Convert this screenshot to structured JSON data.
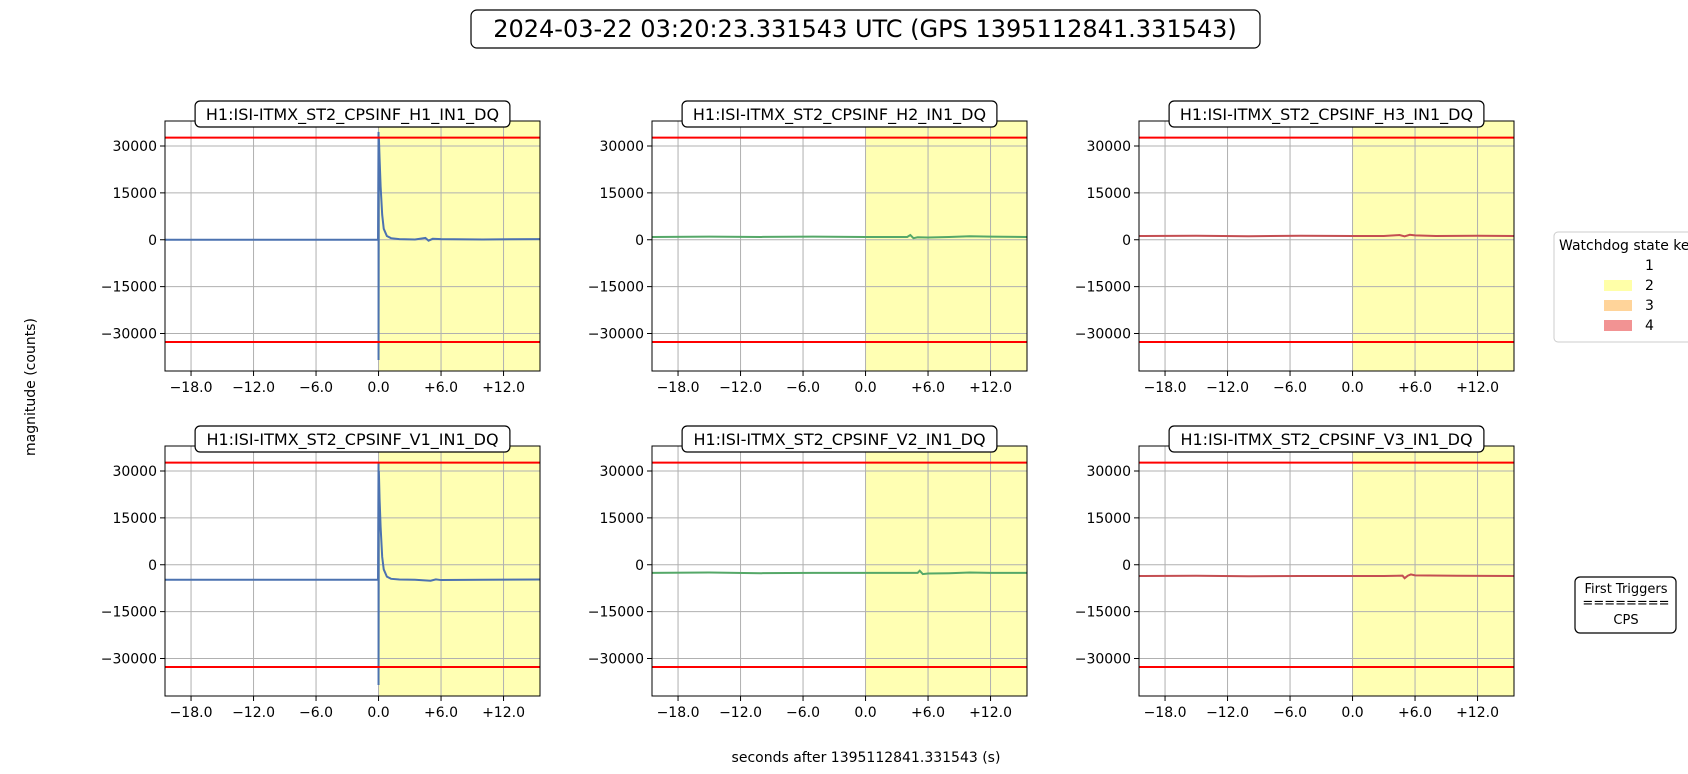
{
  "figure": {
    "title": "2024-03-22 03:20:23.331543 UTC (GPS 1395112841.331543)",
    "ylabel": "magnitude (counts)",
    "xlabel": "seconds after 1395112841.331543 (s)"
  },
  "legend": {
    "title": "Watchdog state key",
    "entries": [
      {
        "label": "1",
        "color": "#ffffff"
      },
      {
        "label": "2",
        "color": "#ffff99"
      },
      {
        "label": "3",
        "color": "#ffcc88"
      },
      {
        "label": "4",
        "color": "#f08080"
      }
    ]
  },
  "triggers_box": {
    "lines": [
      "First Triggers",
      "========",
      "CPS"
    ]
  },
  "colors": {
    "threshold": "#ff0000",
    "state2_fill": "#ffffb2",
    "grid": "#b0b0b0"
  },
  "chart_data": [
    {
      "type": "line",
      "title": "H1:ISI-ITMX_ST2_CPSINF_H1_IN1_DQ",
      "xlim": [
        -20.5,
        15.5
      ],
      "ylim": [
        -42000,
        38000
      ],
      "xticks": [
        -18,
        -12,
        -6,
        0,
        6,
        12
      ],
      "xtick_labels": [
        "−18.0",
        "−12.0",
        "−6.0",
        "0.0",
        "+6.0",
        "+12.0"
      ],
      "yticks": [
        30000,
        15000,
        0,
        -15000,
        -30000
      ],
      "ytick_labels": [
        "30000",
        "15000",
        "0",
        "−15000",
        "−30000"
      ],
      "thresholds": [
        32700,
        -32700
      ],
      "shaded_regions": [
        {
          "x0": 0.0,
          "x1": 15.5,
          "state": 2
        }
      ],
      "series": [
        {
          "color": "#4c72b0",
          "x": [
            -20.5,
            -10,
            -1,
            -0.05,
            0.0,
            0.0,
            0.03,
            0.1,
            0.2,
            0.35,
            0.5,
            0.8,
            1.2,
            2.0,
            3.5,
            4.5,
            4.8,
            5.2,
            6,
            10,
            15.5
          ],
          "y": [
            0,
            0,
            0,
            0,
            34500,
            -38500,
            33000,
            26000,
            17000,
            8000,
            3500,
            1200,
            500,
            200,
            100,
            600,
            -300,
            300,
            200,
            100,
            200
          ]
        }
      ]
    },
    {
      "type": "line",
      "title": "H1:ISI-ITMX_ST2_CPSINF_H2_IN1_DQ",
      "xlim": [
        -20.5,
        15.5
      ],
      "ylim": [
        -42000,
        38000
      ],
      "xticks": [
        -18,
        -12,
        -6,
        0,
        6,
        12
      ],
      "xtick_labels": [
        "−18.0",
        "−12.0",
        "−6.0",
        "0.0",
        "+6.0",
        "+12.0"
      ],
      "yticks": [
        30000,
        15000,
        0,
        -15000,
        -30000
      ],
      "ytick_labels": [
        "30000",
        "15000",
        "0",
        "−15000",
        "−30000"
      ],
      "thresholds": [
        32700,
        -32700
      ],
      "shaded_regions": [
        {
          "x0": 0.0,
          "x1": 15.5,
          "state": 2
        }
      ],
      "series": [
        {
          "color": "#55a868",
          "x": [
            -20.5,
            -15,
            -10,
            -5,
            0,
            3,
            4,
            4.3,
            4.6,
            5,
            6,
            8,
            10,
            12,
            15.5
          ],
          "y": [
            900,
            1000,
            900,
            1000,
            900,
            900,
            900,
            1500,
            500,
            800,
            700,
            900,
            1100,
            1000,
            900
          ]
        }
      ]
    },
    {
      "type": "line",
      "title": "H1:ISI-ITMX_ST2_CPSINF_H3_IN1_DQ",
      "xlim": [
        -20.5,
        15.5
      ],
      "ylim": [
        -42000,
        38000
      ],
      "xticks": [
        -18,
        -12,
        -6,
        0,
        6,
        12
      ],
      "xtick_labels": [
        "−18.0",
        "−12.0",
        "−6.0",
        "0.0",
        "+6.0",
        "+12.0"
      ],
      "yticks": [
        30000,
        15000,
        0,
        -15000,
        -30000
      ],
      "ytick_labels": [
        "30000",
        "15000",
        "0",
        "−15000",
        "−30000"
      ],
      "thresholds": [
        32700,
        -32700
      ],
      "shaded_regions": [
        {
          "x0": 0.0,
          "x1": 15.5,
          "state": 2
        }
      ],
      "series": [
        {
          "color": "#c44e52",
          "x": [
            -20.5,
            -15,
            -10,
            -5,
            0,
            3,
            4.5,
            5,
            5.5,
            6,
            8,
            12,
            15.5
          ],
          "y": [
            1200,
            1300,
            1100,
            1300,
            1200,
            1200,
            1500,
            1100,
            1600,
            1400,
            1200,
            1300,
            1200
          ]
        }
      ]
    },
    {
      "type": "line",
      "title": "H1:ISI-ITMX_ST2_CPSINF_V1_IN1_DQ",
      "xlim": [
        -20.5,
        15.5
      ],
      "ylim": [
        -42000,
        38000
      ],
      "xticks": [
        -18,
        -12,
        -6,
        0,
        6,
        12
      ],
      "xtick_labels": [
        "−18.0",
        "−12.0",
        "−6.0",
        "0.0",
        "+6.0",
        "+12.0"
      ],
      "yticks": [
        30000,
        15000,
        0,
        -15000,
        -30000
      ],
      "ytick_labels": [
        "30000",
        "15000",
        "0",
        "−15000",
        "−30000"
      ],
      "thresholds": [
        32700,
        -32700
      ],
      "shaded_regions": [
        {
          "x0": 0.0,
          "x1": 15.5,
          "state": 2
        }
      ],
      "series": [
        {
          "color": "#4c72b0",
          "x": [
            -20.5,
            -10,
            -1,
            -0.05,
            0.0,
            0.0,
            0.03,
            0.1,
            0.2,
            0.35,
            0.5,
            0.8,
            1.2,
            2.0,
            3.5,
            5,
            5.5,
            6,
            10,
            15.5
          ],
          "y": [
            -4800,
            -4800,
            -4800,
            -4800,
            32500,
            -38500,
            30000,
            21000,
            12000,
            2500,
            -1500,
            -3800,
            -4500,
            -4700,
            -4800,
            -5100,
            -4700,
            -4900,
            -4800,
            -4700
          ]
        }
      ]
    },
    {
      "type": "line",
      "title": "H1:ISI-ITMX_ST2_CPSINF_V2_IN1_DQ",
      "xlim": [
        -20.5,
        15.5
      ],
      "ylim": [
        -42000,
        38000
      ],
      "xticks": [
        -18,
        -12,
        -6,
        0,
        6,
        12
      ],
      "xtick_labels": [
        "−18.0",
        "−12.0",
        "−6.0",
        "0.0",
        "+6.0",
        "+12.0"
      ],
      "yticks": [
        30000,
        15000,
        0,
        -15000,
        -30000
      ],
      "ytick_labels": [
        "30000",
        "15000",
        "0",
        "−15000",
        "−30000"
      ],
      "thresholds": [
        32700,
        -32700
      ],
      "shaded_regions": [
        {
          "x0": 0.0,
          "x1": 15.5,
          "state": 2
        }
      ],
      "series": [
        {
          "color": "#55a868",
          "x": [
            -20.5,
            -15,
            -10,
            -5,
            0,
            3,
            5,
            5.2,
            5.5,
            6,
            8,
            10,
            12,
            15.5
          ],
          "y": [
            -2600,
            -2500,
            -2700,
            -2600,
            -2600,
            -2600,
            -2600,
            -1900,
            -3000,
            -2800,
            -2700,
            -2500,
            -2600,
            -2600
          ]
        }
      ]
    },
    {
      "type": "line",
      "title": "H1:ISI-ITMX_ST2_CPSINF_V3_IN1_DQ",
      "xlim": [
        -20.5,
        15.5
      ],
      "ylim": [
        -42000,
        38000
      ],
      "xticks": [
        -18,
        -12,
        -6,
        0,
        6,
        12
      ],
      "xtick_labels": [
        "−18.0",
        "−12.0",
        "−6.0",
        "0.0",
        "+6.0",
        "+12.0"
      ],
      "yticks": [
        30000,
        15000,
        0,
        -15000,
        -30000
      ],
      "ytick_labels": [
        "30000",
        "15000",
        "0",
        "−15000",
        "−30000"
      ],
      "thresholds": [
        32700,
        -32700
      ],
      "shaded_regions": [
        {
          "x0": 0.0,
          "x1": 15.5,
          "state": 2
        }
      ],
      "series": [
        {
          "color": "#c44e52",
          "x": [
            -20.5,
            -15,
            -10,
            -5,
            0,
            3,
            4.8,
            5.0,
            5.3,
            5.6,
            6,
            10,
            15.5
          ],
          "y": [
            -3600,
            -3500,
            -3700,
            -3600,
            -3600,
            -3600,
            -3500,
            -4300,
            -3500,
            -3100,
            -3400,
            -3500,
            -3600
          ]
        }
      ]
    }
  ]
}
